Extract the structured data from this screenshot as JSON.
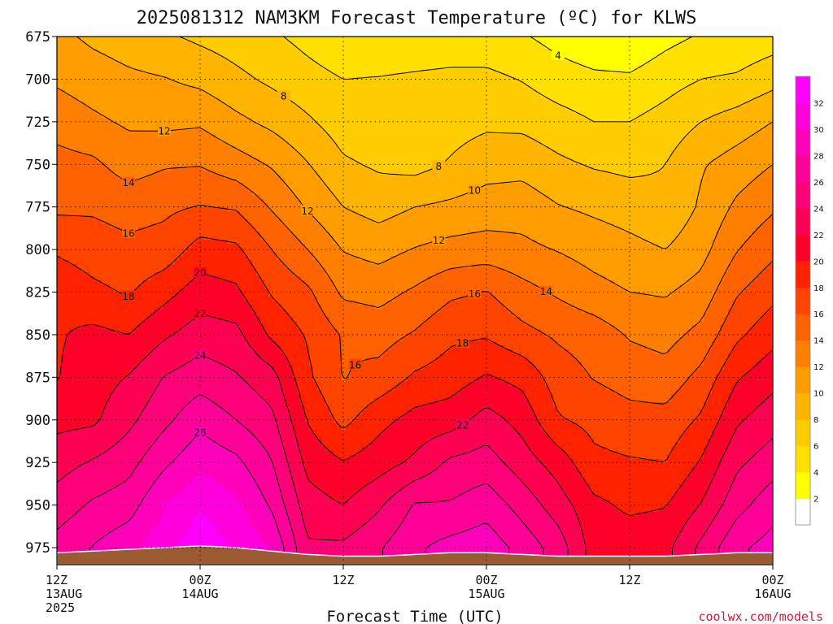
{
  "title": "2025081312 NAM3KM Forecast Temperature (ºC) for KLWS",
  "credit": "coolwx.com/models",
  "chart_data": {
    "type": "heatmap",
    "title": "2025081312 NAM3KM Forecast Temperature (ºC) for KLWS",
    "xlabel": "Forecast Time (UTC)",
    "ylabel": "",
    "x_ticks": [
      {
        "line1": "12Z",
        "line2": "13AUG",
        "line3": "2025",
        "hour": 0
      },
      {
        "line1": "00Z",
        "line2": "14AUG",
        "line3": "",
        "hour": 12
      },
      {
        "line1": "12Z",
        "line2": "",
        "line3": "",
        "hour": 24
      },
      {
        "line1": "00Z",
        "line2": "15AUG",
        "line3": "",
        "hour": 36
      },
      {
        "line1": "12Z",
        "line2": "",
        "line3": "",
        "hour": 48
      },
      {
        "line1": "00Z",
        "line2": "16AUG",
        "line3": "",
        "hour": 60
      }
    ],
    "xlim": [
      0,
      60
    ],
    "y_ticks": [
      675,
      700,
      725,
      750,
      775,
      800,
      825,
      850,
      875,
      900,
      925,
      950,
      975
    ],
    "ylim": [
      675,
      985
    ],
    "colorbar": {
      "levels": [
        2,
        4,
        6,
        8,
        10,
        12,
        14,
        16,
        18,
        20,
        22,
        24,
        26,
        28,
        30,
        32
      ],
      "colors": [
        "#ffffff",
        "#ffff00",
        "#ffe000",
        "#ffcc00",
        "#ffb400",
        "#ff9c00",
        "#ff8000",
        "#ff6200",
        "#ff4400",
        "#ff2200",
        "#ff0028",
        "#ff0052",
        "#ff0078",
        "#ff0099",
        "#ff00bb",
        "#ff00dd",
        "#ff00ff"
      ],
      "min_level": 2,
      "max_level": 32
    },
    "terrain_color": "#9c5a32",
    "contour_levels": [
      4,
      6,
      8,
      10,
      12,
      14,
      16,
      18,
      20,
      22,
      24,
      26,
      28
    ],
    "hours": [
      0,
      3,
      6,
      9,
      12,
      15,
      18,
      21,
      24,
      27,
      30,
      33,
      36,
      39,
      42,
      45,
      48,
      51,
      54,
      57,
      60
    ],
    "pressure_levels": [
      675,
      700,
      725,
      750,
      775,
      800,
      825,
      850,
      875,
      900,
      925,
      950,
      975
    ],
    "temperature": [
      [
        10.5,
        9.6,
        9.0,
        8.3,
        7.6,
        7.0,
        6.3,
        5.4,
        4.5,
        4.5,
        4.6,
        4.7,
        4.7,
        4.2,
        3.3,
        2.6,
        2.3,
        3.4,
        4.2,
        4.4,
        5.0
      ],
      [
        11.7,
        11.0,
        10.4,
        10.1,
        9.5,
        8.5,
        7.6,
        6.7,
        6.0,
        6.1,
        6.3,
        6.5,
        6.5,
        5.9,
        4.9,
        4.4,
        4.3,
        5.2,
        6.0,
        6.3,
        7.3
      ],
      [
        13.2,
        12.4,
        11.7,
        11.5,
        11.7,
        10.5,
        9.5,
        8.3,
        7.0,
        6.7,
        6.7,
        7.2,
        7.6,
        7.5,
        6.8,
        6.0,
        6.0,
        6.8,
        8.0,
        8.9,
        10.0
      ],
      [
        14.7,
        14.4,
        13.1,
        13.8,
        13.9,
        12.9,
        11.8,
        10.1,
        8.3,
        7.7,
        7.3,
        8.2,
        9.2,
        9.3,
        8.4,
        7.8,
        7.5,
        8.0,
        9.8,
        10.9,
        12.0
      ],
      [
        15.6,
        15.7,
        15.2,
        15.6,
        16.1,
        15.8,
        13.8,
        11.8,
        10.0,
        9.2,
        10.0,
        10.4,
        10.9,
        11.1,
        10.1,
        9.6,
        9.1,
        8.4,
        10.3,
        12.4,
        13.7
      ],
      [
        17.7,
        17.0,
        16.5,
        16.8,
        18.8,
        18.4,
        16.0,
        14.0,
        11.9,
        11.3,
        12.1,
        12.7,
        12.9,
        12.5,
        11.9,
        11.2,
        10.6,
        10.0,
        11.3,
        13.9,
        15.5
      ],
      [
        19.6,
        18.5,
        17.8,
        19.3,
        21.0,
        20.4,
        17.8,
        16.4,
        13.6,
        13.3,
        14.3,
        15.6,
        16.1,
        14.7,
        13.7,
        12.7,
        12.0,
        11.8,
        12.8,
        15.8,
        17.4
      ],
      [
        19.8,
        20.5,
        20.0,
        21.7,
        23.0,
        22.6,
        19.6,
        17.8,
        15.8,
        15.2,
        16.2,
        17.6,
        17.8,
        16.6,
        15.7,
        15.1,
        13.8,
        13.3,
        14.6,
        17.6,
        19.3
      ],
      [
        19.9,
        21.1,
        22.1,
        24.1,
        25.1,
        24.2,
        22.8,
        18.4,
        15.9,
        16.7,
        18.3,
        19.0,
        20.2,
        19.4,
        17.0,
        15.9,
        15.2,
        14.8,
        16.6,
        19.8,
        21.3
      ],
      [
        21.4,
        21.6,
        23.5,
        25.5,
        27.4,
        26.0,
        24.5,
        19.9,
        17.4,
        19.4,
        20.7,
        21.1,
        22.8,
        21.3,
        18.2,
        17.4,
        16.7,
        16.7,
        18.3,
        21.7,
        23.2
      ],
      [
        23.2,
        24.2,
        25.3,
        27.6,
        29.5,
        28.5,
        26.1,
        21.4,
        20.1,
        21.1,
        22.4,
        24.4,
        24.9,
        23.0,
        21.1,
        18.5,
        18.2,
        18.0,
        20.2,
        23.6,
        25.1
      ],
      [
        24.9,
        26.3,
        27.1,
        30.0,
        31.8,
        30.5,
        27.7,
        22.9,
        22.0,
        23.7,
        26.2,
        26.2,
        27.2,
        25.2,
        23.0,
        20.5,
        19.6,
        19.9,
        22.1,
        25.3,
        27.2
      ],
      [
        26.8,
        28.1,
        29.4,
        31.3,
        33.2,
        31.9,
        29.9,
        24.3,
        24.4,
        25.8,
        27.7,
        28.7,
        29.2,
        27.3,
        25.1,
        21.1,
        21.2,
        21.4,
        24.5,
        27.6,
        28.8
      ]
    ],
    "surface_pressure": [
      978,
      977,
      976,
      975,
      974,
      975,
      977,
      979,
      980,
      980,
      979,
      978,
      978,
      979,
      980,
      980,
      980,
      980,
      979,
      978,
      978
    ]
  }
}
